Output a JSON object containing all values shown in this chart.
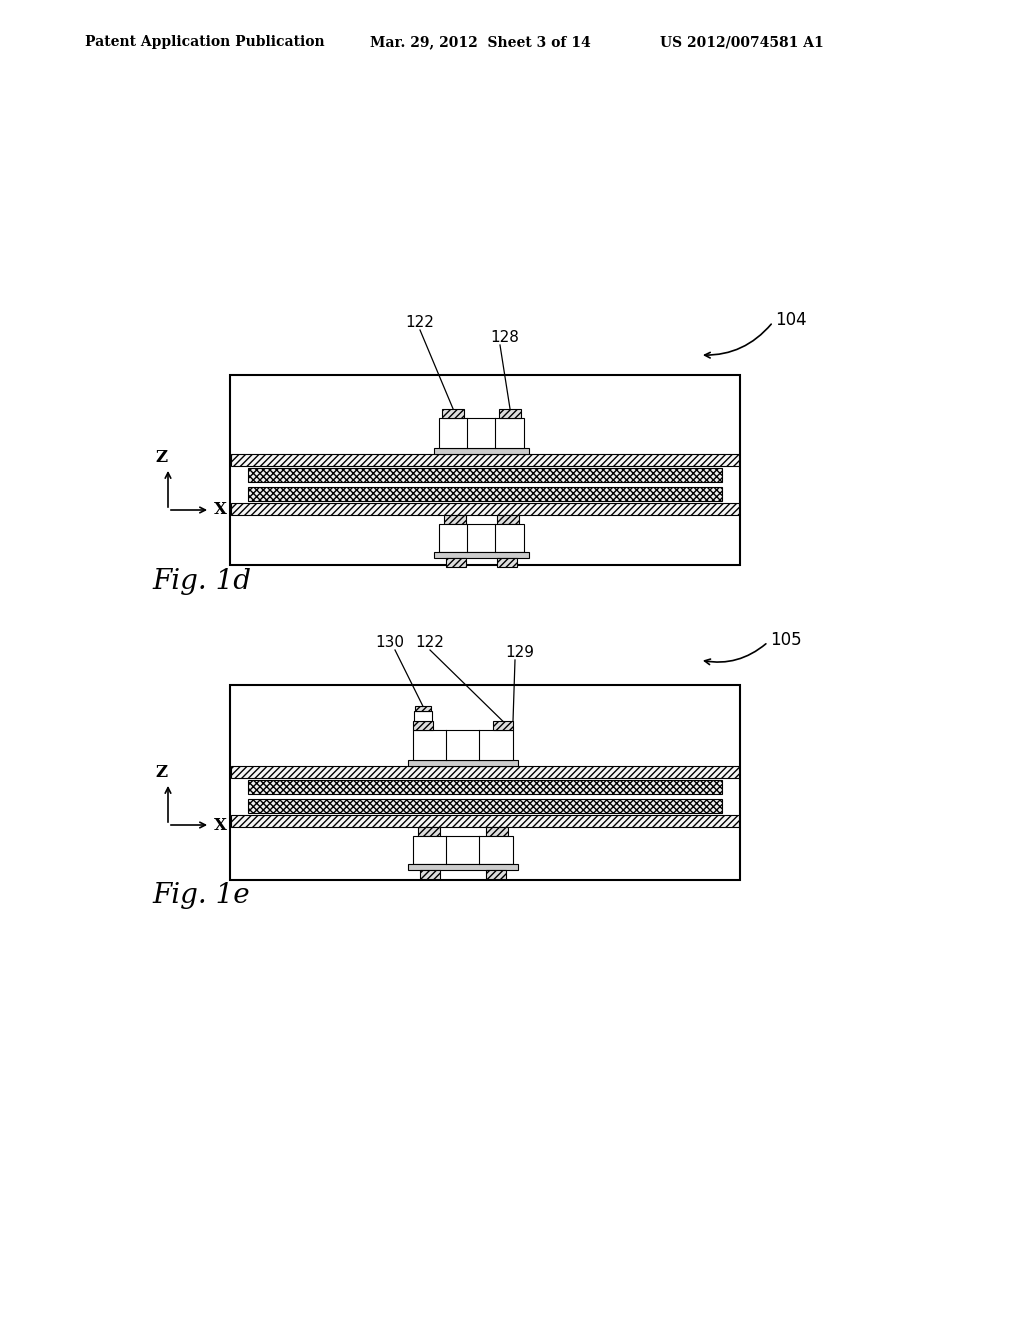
{
  "bg_color": "#ffffff",
  "header_left": "Patent Application Publication",
  "header_mid": "Mar. 29, 2012  Sheet 3 of 14",
  "header_right": "US 2012/0074581 A1",
  "fig1d_label": "Fig. 1d",
  "fig1e_label": "Fig. 1e",
  "ref104": "104",
  "ref105": "105",
  "ref122_1d": "122",
  "ref128_1d": "128",
  "ref130_1e": "130",
  "ref122_1e": "122",
  "ref129_1e": "129"
}
